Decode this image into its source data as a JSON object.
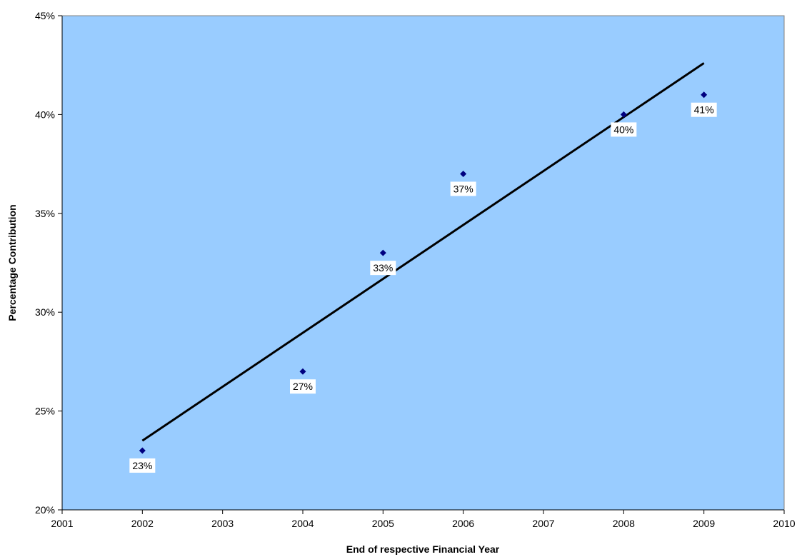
{
  "chart_data": {
    "type": "scatter",
    "title": "",
    "xlabel": "End of respective Financial Year",
    "ylabel": "Percentage Contribution",
    "xlim": [
      2001,
      2010
    ],
    "ylim": [
      0.2,
      0.45
    ],
    "x_ticks": [
      2001,
      2002,
      2003,
      2004,
      2005,
      2006,
      2007,
      2008,
      2009,
      2010
    ],
    "y_ticks": [
      "20%",
      "25%",
      "30%",
      "35%",
      "40%",
      "45%"
    ],
    "grid": false,
    "legend": "none",
    "series": [
      {
        "points": [
          {
            "x": 2002,
            "y": 0.23,
            "label": "23%"
          },
          {
            "x": 2004,
            "y": 0.27,
            "label": "27%"
          },
          {
            "x": 2005,
            "y": 0.33,
            "label": "33%"
          },
          {
            "x": 2006,
            "y": 0.37,
            "label": "37%"
          },
          {
            "x": 2008,
            "y": 0.4,
            "label": "40%"
          },
          {
            "x": 2009,
            "y": 0.41,
            "label": "41%"
          }
        ],
        "marker": "diamond",
        "color": "#000080"
      }
    ],
    "trendline": {
      "type": "linear",
      "x_start": 2002,
      "y_start": 0.235,
      "x_end": 2009,
      "y_end": 0.426,
      "color": "#000000"
    },
    "plot_background": "#99ccff"
  }
}
